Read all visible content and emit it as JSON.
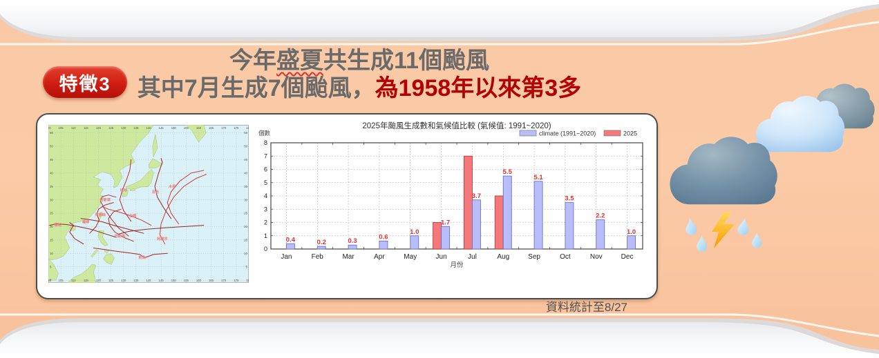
{
  "slide": {
    "badge_label": "特徵3",
    "title": {
      "line1_prefix": "今年",
      "line1_underlined": "盛夏",
      "line1_suffix": "共生成11個颱風",
      "line2_gray": "其中7月生成7個颱風，",
      "line2_red": "為1958年以來第3多"
    },
    "footnote": "資料統計至8/27",
    "colors": {
      "background": "#f9c8a4",
      "badge_red": "#cf1d12",
      "title_gray": "#6a6a6a",
      "highlight_red": "#b30000"
    }
  },
  "map": {
    "lon_min": 100,
    "lon_max": 180,
    "lon_step": 5,
    "lat_min": 0,
    "lat_max": 55,
    "lat_step": 5,
    "ocean_color": "#d9f1f7",
    "land_color": "#cde99e",
    "track_color": "#c01e1e",
    "typhoon_labels": [
      {
        "name": "玲玲",
        "lon": 128.6,
        "lat": 33.2
      },
      {
        "name": "木恩",
        "lon": 148.0,
        "lat": 34.5
      },
      {
        "name": "百合",
        "lon": 141.3,
        "lat": 32.5
      },
      {
        "name": "竹節草",
        "lon": 120.5,
        "lat": 29.5
      },
      {
        "name": "白鹿",
        "lon": 132.3,
        "lat": 23.6
      },
      {
        "name": "丹娜絲",
        "lon": 118.6,
        "lat": 24.0
      },
      {
        "name": "楊柳",
        "lon": 113.5,
        "lat": 21.3
      },
      {
        "name": "薇帕",
        "lon": 102.3,
        "lat": 20.3
      },
      {
        "name": "范斯高",
        "lon": 126.3,
        "lat": 16.0
      },
      {
        "name": "柯羅莎",
        "lon": 143.3,
        "lat": 15.0
      },
      {
        "name": "劍魚",
        "lon": 136.0,
        "lat": 8.0
      }
    ]
  },
  "chart_data": {
    "type": "bar",
    "title": "2025年颱風生成數和氣候值比較 (氣候值: 1991~2020)",
    "xlabel": "月份",
    "ylabel": "個數",
    "ylim": [
      0,
      8
    ],
    "grid": true,
    "legend_position": "top-right",
    "categories": [
      "Jan",
      "Feb",
      "Mar",
      "Apr",
      "May",
      "Jun",
      "Jul",
      "Aug",
      "Sep",
      "Oct",
      "Nov",
      "Dec"
    ],
    "series": [
      {
        "name": "climate (1991~2020)",
        "color": "#b9befb",
        "edge": "#6a72c8",
        "values": [
          0.4,
          0.2,
          0.3,
          0.6,
          1.0,
          1.7,
          3.7,
          5.5,
          5.1,
          3.5,
          2.2,
          1.0
        ],
        "value_labels": true
      },
      {
        "name": "2025",
        "color": "#f4797c",
        "edge": "#bf3a34",
        "values": [
          0,
          0,
          0,
          0,
          0,
          2,
          7,
          4,
          0,
          0,
          0,
          0
        ],
        "value_labels": false
      }
    ],
    "value_label_color": "#e03030"
  }
}
